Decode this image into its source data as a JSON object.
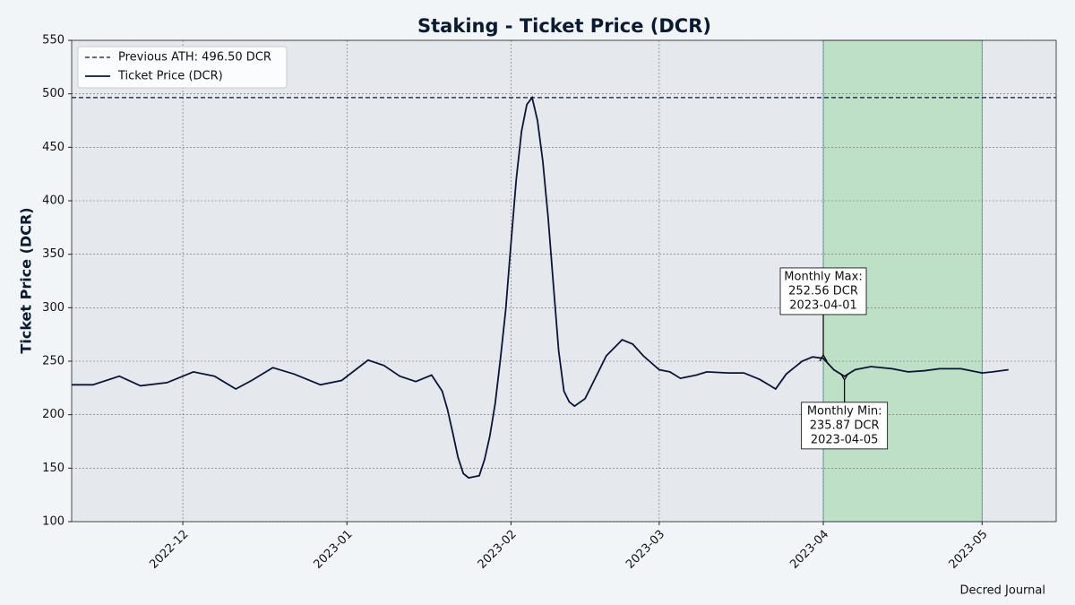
{
  "chart_data": {
    "type": "line",
    "title": "Staking - Ticket Price (DCR)",
    "ylabel": "Ticket Price (DCR)",
    "source": "Decred Journal",
    "x": [
      "2022-11-10",
      "2022-11-14",
      "2022-11-19",
      "2022-11-23",
      "2022-11-28",
      "2022-12-03",
      "2022-12-07",
      "2022-12-11",
      "2022-12-14",
      "2022-12-18",
      "2022-12-22",
      "2022-12-27",
      "2022-12-31",
      "2023-01-05",
      "2023-01-08",
      "2023-01-11",
      "2023-01-14",
      "2023-01-17",
      "2023-01-19",
      "2023-01-20",
      "2023-01-21",
      "2023-01-22",
      "2023-01-23",
      "2023-01-24",
      "2023-01-26",
      "2023-01-27",
      "2023-01-28",
      "2023-01-29",
      "2023-01-30",
      "2023-01-31",
      "2023-02-01",
      "2023-02-02",
      "2023-02-03",
      "2023-02-04",
      "2023-02-05",
      "2023-02-06",
      "2023-02-07",
      "2023-02-08",
      "2023-02-09",
      "2023-02-10",
      "2023-02-11",
      "2023-02-12",
      "2023-02-13",
      "2023-02-15",
      "2023-02-17",
      "2023-02-19",
      "2023-02-22",
      "2023-02-24",
      "2023-02-26",
      "2023-03-01",
      "2023-03-03",
      "2023-03-05",
      "2023-03-08",
      "2023-03-10",
      "2023-03-14",
      "2023-03-17",
      "2023-03-20",
      "2023-03-22",
      "2023-03-23",
      "2023-03-25",
      "2023-03-28",
      "2023-03-30",
      "2023-04-01",
      "2023-04-03",
      "2023-04-05",
      "2023-04-07",
      "2023-04-10",
      "2023-04-14",
      "2023-04-17",
      "2023-04-20",
      "2023-04-23",
      "2023-04-27",
      "2023-05-01",
      "2023-05-03",
      "2023-05-06"
    ],
    "series": [
      {
        "name": "Ticket Price (DCR)",
        "color": "#0b1535",
        "values": [
          228,
          228,
          236,
          227,
          230,
          240,
          236,
          224,
          232,
          244,
          238,
          228,
          232,
          251,
          246,
          236,
          231,
          237,
          222,
          205,
          183,
          160,
          145,
          141,
          143,
          158,
          180,
          210,
          252,
          298,
          360,
          420,
          465,
          490,
          496.5,
          475,
          437,
          385,
          322,
          260,
          222,
          212,
          208,
          215,
          235,
          255,
          270,
          266,
          255,
          242,
          240,
          234,
          237,
          240,
          239,
          239,
          233,
          227,
          224,
          238,
          250,
          254,
          252.56,
          242,
          235.87,
          242,
          245,
          243,
          240,
          241,
          243,
          243,
          239,
          240,
          242
        ]
      }
    ],
    "reference_line": {
      "value": 496.5,
      "label": "Previous ATH: 496.50 DCR",
      "color": "#0b1535",
      "style": "dashed"
    },
    "highlight": {
      "range": [
        "2023-04-01",
        "2023-05-01"
      ],
      "color": "#bde0c6"
    },
    "annotations": [
      {
        "x": "2023-04-01",
        "y": 252.56,
        "lines": [
          "Monthly Max:",
          "252.56 DCR",
          "2023-04-01"
        ]
      },
      {
        "x": "2023-04-05",
        "y": 235.87,
        "lines": [
          "Monthly Min:",
          "235.87 DCR",
          "2023-04-05"
        ]
      }
    ],
    "xlim": [
      "2022-11-10",
      "2023-05-15"
    ],
    "xticks": [
      {
        "value": "2022-12-01",
        "label": "2022-12"
      },
      {
        "value": "2023-01-01",
        "label": "2023-01"
      },
      {
        "value": "2023-02-01",
        "label": "2023-02"
      },
      {
        "value": "2023-03-01",
        "label": "2023-03"
      },
      {
        "value": "2023-04-01",
        "label": "2023-04"
      },
      {
        "value": "2023-05-01",
        "label": "2023-05"
      }
    ],
    "ylim": [
      100,
      550
    ],
    "yticks": [
      100,
      150,
      200,
      250,
      300,
      350,
      400,
      450,
      500,
      550
    ],
    "grid": true,
    "legend": "upper left"
  }
}
